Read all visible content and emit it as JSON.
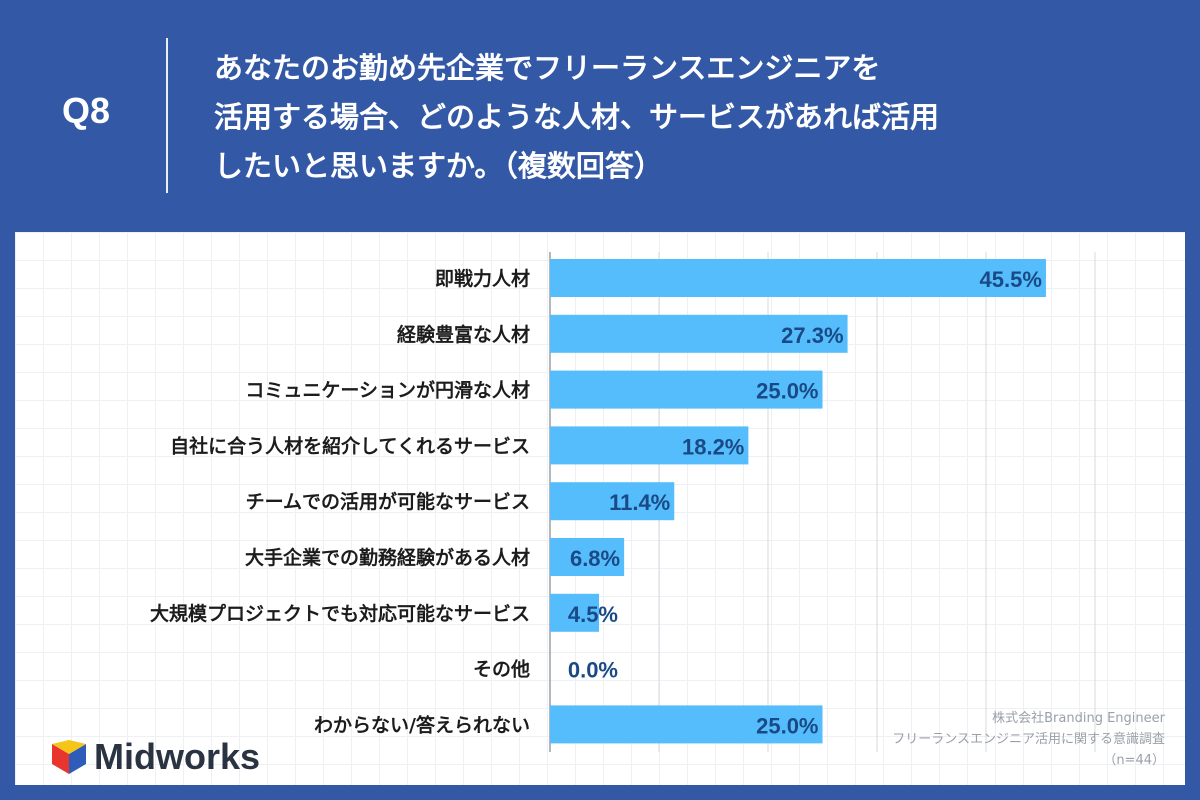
{
  "question": {
    "label": "Q8",
    "lines": [
      "あなたのお勤め先企業でフリーランスエンジニアを",
      "活用する場合、どのような人材、サービスがあれば活用",
      "したいと思いますか。（複数回答）"
    ]
  },
  "chart_data": {
    "type": "bar",
    "orientation": "horizontal",
    "categories": [
      "即戦力人材",
      "経験豊富な人材",
      "コミュニケーションが円滑な人材",
      "自社に合う人材を紹介してくれるサービス",
      "チームでの活用が可能なサービス",
      "大手企業での勤務経験がある人材",
      "大規模プロジェクトでも対応可能なサービス",
      "その他",
      "わからない/答えられない"
    ],
    "values": [
      45.5,
      27.3,
      25.0,
      18.2,
      11.4,
      6.8,
      4.5,
      0.0,
      25.0
    ],
    "value_labels": [
      "45.5%",
      "27.3%",
      "25.0%",
      "18.2%",
      "11.4%",
      "6.8%",
      "4.5%",
      "0.0%",
      "25.0%"
    ],
    "xlim": [
      0,
      50
    ],
    "grid": true,
    "bar_color": "#55BDFB",
    "label_color": "#1A4A86"
  },
  "source": {
    "line1": "株式会社Branding Engineer",
    "line2": "フリーランスエンジニア活用に関する意識調査",
    "line3": "（n=44）"
  },
  "brand": {
    "name": "Midworks",
    "colors": {
      "red": "#E8352E",
      "yellow": "#F5C518",
      "blue": "#2E5CB8"
    }
  },
  "colors": {
    "background": "#3358A6",
    "panel": "#FFFFFF"
  }
}
